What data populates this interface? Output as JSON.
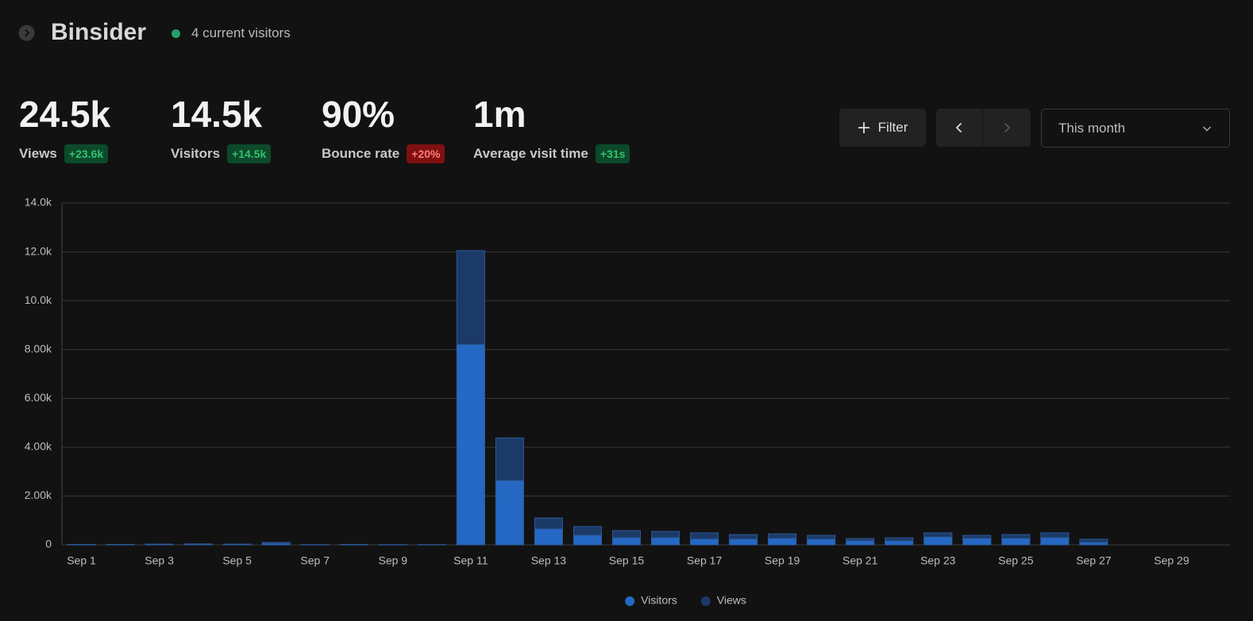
{
  "header": {
    "title": "Binsider",
    "current_visitors": "4 current visitors"
  },
  "metrics": [
    {
      "value": "24.5k",
      "label": "Views",
      "change": "+23.6k",
      "badge_color": "green"
    },
    {
      "value": "14.5k",
      "label": "Visitors",
      "change": "+14.5k",
      "badge_color": "green"
    },
    {
      "value": "90%",
      "label": "Bounce rate",
      "change": "+20%",
      "badge_color": "red"
    },
    {
      "value": "1m",
      "label": "Average visit time",
      "change": "+31s",
      "badge_color": "green"
    }
  ],
  "controls": {
    "filter": "Filter",
    "date_range": "This month"
  },
  "chart_data": {
    "type": "bar",
    "categories": [
      "Sep 1",
      null,
      "Sep 3",
      null,
      "Sep 5",
      null,
      "Sep 7",
      null,
      "Sep 9",
      null,
      "Sep 11",
      null,
      "Sep 13",
      null,
      "Sep 15",
      null,
      "Sep 17",
      null,
      "Sep 19",
      null,
      "Sep 21",
      null,
      "Sep 23",
      null,
      "Sep 25",
      null,
      "Sep 27",
      null,
      "Sep 29",
      null
    ],
    "series": [
      {
        "name": "Visitors",
        "color": "#2568c4",
        "values": [
          10,
          10,
          15,
          20,
          15,
          50,
          5,
          10,
          5,
          5,
          8200,
          2630,
          650,
          390,
          290,
          290,
          230,
          230,
          260,
          230,
          160,
          160,
          320,
          260,
          260,
          290,
          100,
          0,
          0,
          0
        ]
      },
      {
        "name": "Views",
        "color": "#1c3a67",
        "values": [
          20,
          20,
          30,
          40,
          30,
          100,
          10,
          20,
          10,
          10,
          12050,
          4380,
          1100,
          750,
          580,
          550,
          490,
          420,
          450,
          390,
          260,
          290,
          490,
          390,
          420,
          490,
          230,
          0,
          0,
          0
        ]
      }
    ],
    "ylim": [
      0,
      14000
    ],
    "yticks": [
      0,
      {
        "value": 2000,
        "label": "2.00k"
      },
      {
        "value": 4000,
        "label": "4.00k"
      },
      {
        "value": 6000,
        "label": "6.00k"
      },
      {
        "value": 8000,
        "label": "8.00k"
      },
      {
        "value": 10000,
        "label": "10.0k"
      },
      {
        "value": 12000,
        "label": "12.0k"
      },
      {
        "value": 14000,
        "label": "14.0k"
      }
    ],
    "grid": true,
    "legend": "bottom"
  }
}
